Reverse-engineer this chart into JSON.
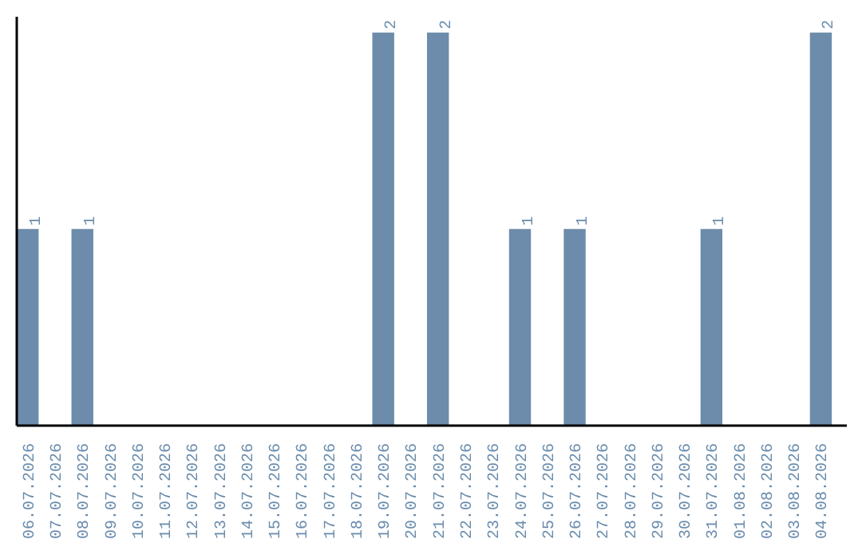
{
  "chart_data": {
    "type": "bar",
    "categories": [
      "06.07.2026",
      "07.07.2026",
      "08.07.2026",
      "09.07.2026",
      "10.07.2026",
      "11.07.2026",
      "12.07.2026",
      "13.07.2026",
      "14.07.2026",
      "15.07.2026",
      "16.07.2026",
      "17.07.2026",
      "18.07.2026",
      "19.07.2026",
      "20.07.2026",
      "21.07.2026",
      "22.07.2026",
      "23.07.2026",
      "24.07.2026",
      "25.07.2026",
      "26.07.2026",
      "27.07.2026",
      "28.07.2026",
      "29.07.2026",
      "30.07.2026",
      "31.07.2026",
      "01.08.2026",
      "02.08.2026",
      "03.08.2026",
      "04.08.2026"
    ],
    "values": [
      1,
      0,
      1,
      0,
      0,
      0,
      0,
      0,
      0,
      0,
      0,
      0,
      0,
      2,
      0,
      2,
      0,
      0,
      1,
      0,
      1,
      0,
      0,
      0,
      0,
      1,
      0,
      0,
      0,
      2
    ],
    "value_labels": [
      "1",
      null,
      "1",
      null,
      null,
      null,
      null,
      null,
      null,
      null,
      null,
      null,
      null,
      "2",
      null,
      "2",
      null,
      null,
      "1",
      null,
      "1",
      null,
      null,
      null,
      null,
      "1",
      null,
      null,
      null,
      "2"
    ],
    "color": "#6d8cab",
    "grid": false
  }
}
